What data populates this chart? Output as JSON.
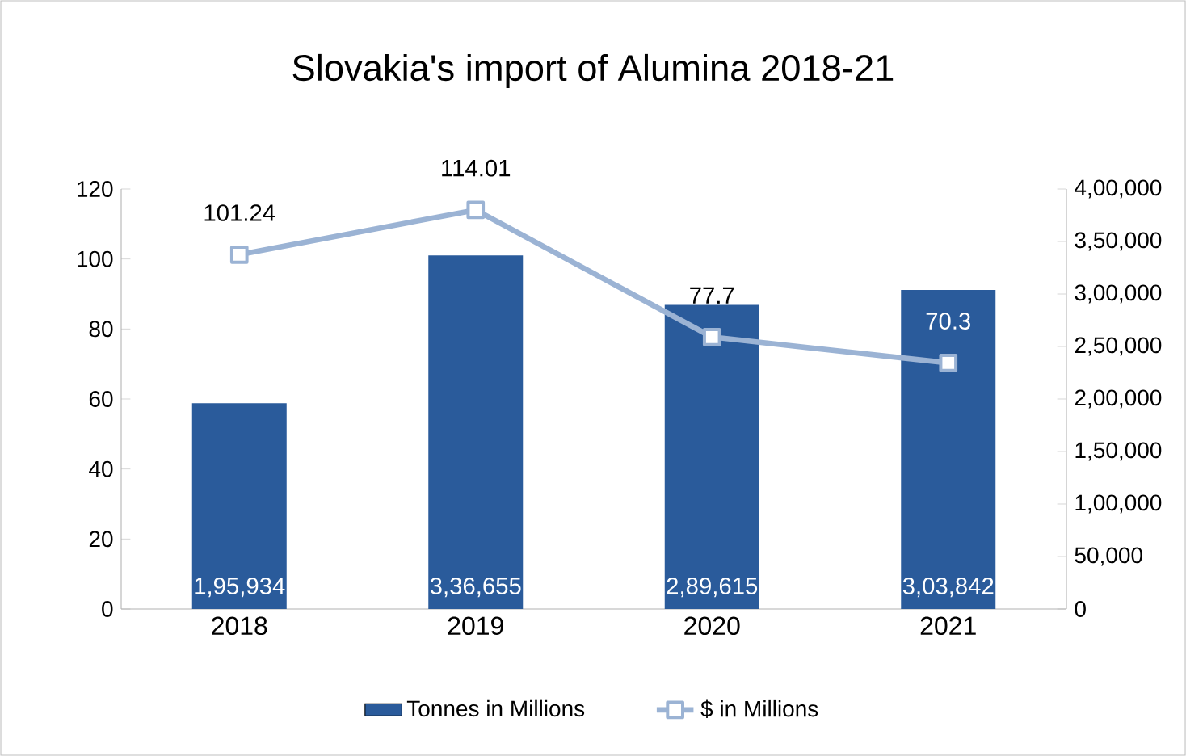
{
  "chart_data": {
    "type": "bar",
    "title": "Slovakia's import of Alumina 2018-21",
    "categories": [
      "2018",
      "2019",
      "2020",
      "2021"
    ],
    "series": [
      {
        "name": "Tonnes in Millions",
        "axis": "y2",
        "color": "#2a5b9b",
        "values": [
          195934,
          336655,
          289615,
          303842
        ],
        "value_labels": [
          "1,95,934",
          "3,36,655",
          "2,89,615",
          "3,03,842"
        ]
      },
      {
        "name": "$ in Millions",
        "type": "line",
        "axis": "y",
        "color": "#9bb3d4",
        "values": [
          101.24,
          114.01,
          77.7,
          70.3
        ],
        "value_labels": [
          "101.24",
          "114.01",
          "77.7",
          "70.3"
        ]
      }
    ],
    "ylim": [
      0,
      120
    ],
    "yticks": [
      0,
      20,
      40,
      60,
      80,
      100,
      120
    ],
    "y2lim": [
      0,
      400000
    ],
    "y2ticks": [
      0,
      {
        "value": 50000,
        "label": "50,000"
      },
      {
        "value": 100000,
        "label": "1,00,000"
      },
      {
        "value": 150000,
        "label": "1,50,000"
      },
      {
        "value": 200000,
        "label": "2,00,000"
      },
      {
        "value": 250000,
        "label": "2,50,000"
      },
      {
        "value": 300000,
        "label": "3,00,000"
      },
      {
        "value": 350000,
        "label": "3,50,000"
      },
      {
        "value": 400000,
        "label": "4,00,000"
      }
    ],
    "legend": "bottom",
    "marker": "square"
  }
}
